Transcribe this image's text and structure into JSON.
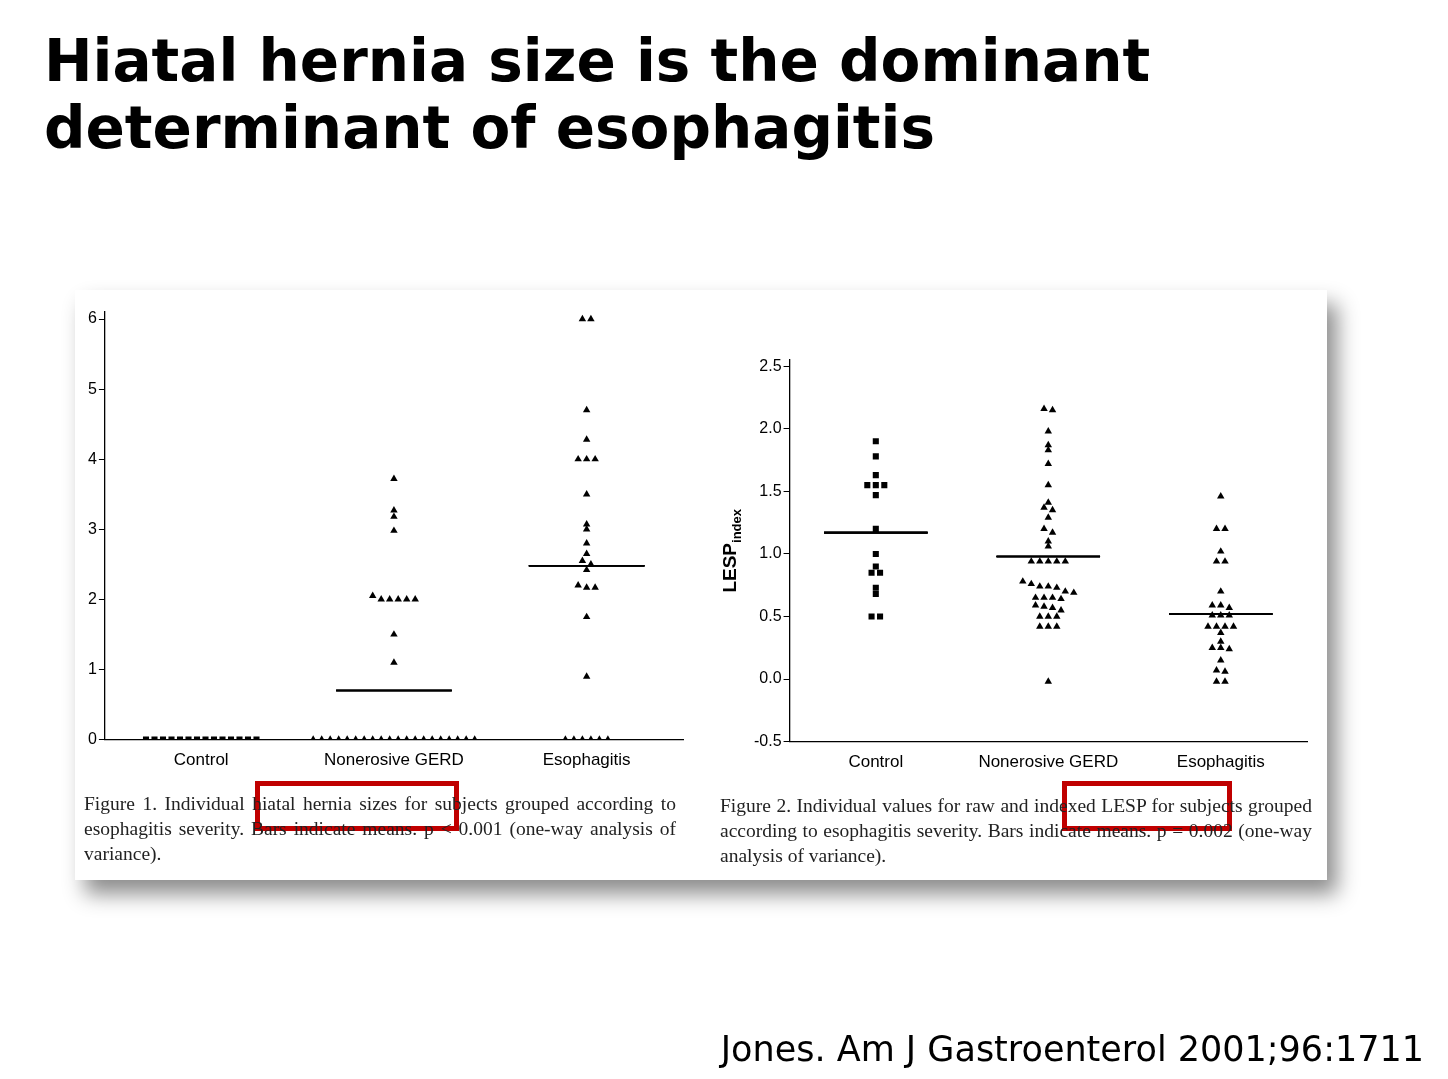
{
  "chart_data": [
    {
      "type": "scatter",
      "title": "Hiatal hernia size is the dominant determinant of esophagitis",
      "categories": [
        "Control",
        "Nonerosive GERD",
        "Esophagitis"
      ],
      "ylim": [
        0,
        6.1
      ],
      "yticks": [
        0,
        1,
        2,
        3,
        4,
        5,
        6
      ],
      "legend": false,
      "grid": false,
      "series": [
        {
          "marker": "square",
          "color": "#000000",
          "x": [
            "Control",
            "Control",
            "Control",
            "Control",
            "Control",
            "Control",
            "Control",
            "Control",
            "Control",
            "Control",
            "Control",
            "Control",
            "Control",
            "Control"
          ],
          "values": [
            0,
            0,
            0,
            0,
            0,
            0,
            0,
            0,
            0,
            0,
            0,
            0,
            0,
            0
          ]
        },
        {
          "marker": "triangle",
          "color": "#000000",
          "x": [
            "Nonerosive GERD",
            "Nonerosive GERD",
            "Nonerosive GERD",
            "Nonerosive GERD",
            "Nonerosive GERD",
            "Nonerosive GERD",
            "Nonerosive GERD",
            "Nonerosive GERD",
            "Nonerosive GERD",
            "Nonerosive GERD",
            "Nonerosive GERD",
            "Nonerosive GERD",
            "Nonerosive GERD",
            "Nonerosive GERD",
            "Nonerosive GERD",
            "Nonerosive GERD",
            "Nonerosive GERD",
            "Nonerosive GERD",
            "Nonerosive GERD",
            "Nonerosive GERD",
            "Nonerosive GERD",
            "Nonerosive GERD",
            "Nonerosive GERD",
            "Nonerosive GERD",
            "Nonerosive GERD",
            "Nonerosive GERD",
            "Nonerosive GERD",
            "Nonerosive GERD",
            "Nonerosive GERD",
            "Nonerosive GERD",
            "Nonerosive GERD",
            "Nonerosive GERD"
          ],
          "values": [
            3.72,
            3.27,
            3.18,
            2.98,
            2.05,
            2,
            2,
            2,
            2,
            2,
            1.5,
            1.1,
            0,
            0,
            0,
            0,
            0,
            0,
            0,
            0,
            0,
            0,
            0,
            0,
            0,
            0,
            0,
            0,
            0,
            0,
            0,
            0
          ]
        },
        {
          "marker": "triangle",
          "color": "#000000",
          "x": [
            "Esophagitis",
            "Esophagitis",
            "Esophagitis",
            "Esophagitis",
            "Esophagitis",
            "Esophagitis",
            "Esophagitis",
            "Esophagitis",
            "Esophagitis",
            "Esophagitis",
            "Esophagitis",
            "Esophagitis",
            "Esophagitis",
            "Esophagitis",
            "Esophagitis",
            "Esophagitis",
            "Esophagitis",
            "Esophagitis",
            "Esophagitis",
            "Esophagitis",
            "Esophagitis",
            "Esophagitis",
            "Esophagitis",
            "Esophagitis",
            "Esophagitis",
            "Esophagitis"
          ],
          "values": [
            6,
            6,
            4.7,
            4.28,
            4,
            4,
            4,
            3.5,
            3.07,
            3,
            2.8,
            2.65,
            2.55,
            2.5,
            2.42,
            2.2,
            2.17,
            2.17,
            1.75,
            0.9,
            0,
            0,
            0,
            0,
            0,
            0
          ]
        },
        {
          "type": "box",
          "color": "#000000",
          "boxes": [
            null,
            {
              "low": 0.7,
              "q1": 0.7,
              "median": 0.7,
              "q3": 0.7,
              "high": 0.7
            },
            {
              "low": 2.48,
              "q1": 2.48,
              "median": 2.48,
              "q3": 2.48,
              "high": 2.48
            }
          ]
        }
      ],
      "annotations": [
        "Figure 1. Individual hiatal hernia sizes for subjects grouped according to esophagitis severity. Bars indicate means. p < 0.001 (one-way analysis of variance)."
      ]
    },
    {
      "type": "scatter",
      "ylabel": "LESP$_{index}$",
      "categories": [
        "Control",
        "Nonerosive GERD",
        "Esophagitis"
      ],
      "ylim": [
        -0.5,
        2.55
      ],
      "yticks": [
        -0.5,
        {
          "value": 0,
          "label": "0.0"
        },
        0.5,
        {
          "value": 1,
          "label": "1.0"
        },
        1.5,
        {
          "value": 2,
          "label": "2.0"
        },
        2.5
      ],
      "legend": false,
      "grid": false,
      "series": [
        {
          "marker": "square",
          "color": "#000000",
          "x": [
            "Control",
            "Control",
            "Control",
            "Control",
            "Control",
            "Control",
            "Control",
            "Control",
            "Control",
            "Control",
            "Control",
            "Control",
            "Control",
            "Control",
            "Control",
            "Control"
          ],
          "values": [
            1.9,
            1.78,
            1.63,
            1.55,
            1.55,
            1.55,
            1.47,
            1.2,
            1,
            0.9,
            0.85,
            0.85,
            0.73,
            0.68,
            0.5,
            0.5
          ]
        },
        {
          "marker": "triangle",
          "color": "#000000",
          "x": [
            "Nonerosive GERD",
            "Nonerosive GERD",
            "Nonerosive GERD",
            "Nonerosive GERD",
            "Nonerosive GERD",
            "Nonerosive GERD",
            "Nonerosive GERD",
            "Nonerosive GERD",
            "Nonerosive GERD",
            "Nonerosive GERD",
            "Nonerosive GERD",
            "Nonerosive GERD",
            "Nonerosive GERD",
            "Nonerosive GERD",
            "Nonerosive GERD",
            "Nonerosive GERD",
            "Nonerosive GERD",
            "Nonerosive GERD",
            "Nonerosive GERD",
            "Nonerosive GERD",
            "Nonerosive GERD",
            "Nonerosive GERD",
            "Nonerosive GERD",
            "Nonerosive GERD",
            "Nonerosive GERD",
            "Nonerosive GERD",
            "Nonerosive GERD",
            "Nonerosive GERD",
            "Nonerosive GERD",
            "Nonerosive GERD",
            "Nonerosive GERD",
            "Nonerosive GERD",
            "Nonerosive GERD",
            "Nonerosive GERD",
            "Nonerosive GERD",
            "Nonerosive GERD",
            "Nonerosive GERD",
            "Nonerosive GERD",
            "Nonerosive GERD",
            "Nonerosive GERD",
            "Nonerosive GERD",
            "Nonerosive GERD"
          ],
          "values": [
            2.16,
            2.15,
            1.98,
            1.87,
            1.83,
            1.72,
            1.55,
            1.41,
            1.37,
            1.35,
            1.29,
            1.2,
            1.17,
            1.1,
            1.06,
            0.94,
            0.94,
            0.94,
            0.94,
            0.94,
            0.78,
            0.76,
            0.74,
            0.74,
            0.73,
            0.7,
            0.69,
            0.65,
            0.65,
            0.65,
            0.64,
            0.59,
            0.58,
            0.57,
            0.55,
            0.5,
            0.5,
            0.5,
            0.42,
            0.42,
            0.42,
            -0.02
          ]
        },
        {
          "marker": "triangle",
          "color": "#000000",
          "x": [
            "Esophagitis",
            "Esophagitis",
            "Esophagitis",
            "Esophagitis",
            "Esophagitis",
            "Esophagitis",
            "Esophagitis",
            "Esophagitis",
            "Esophagitis",
            "Esophagitis",
            "Esophagitis",
            "Esophagitis",
            "Esophagitis",
            "Esophagitis",
            "Esophagitis",
            "Esophagitis",
            "Esophagitis",
            "Esophagitis",
            "Esophagitis",
            "Esophagitis",
            "Esophagitis",
            "Esophagitis",
            "Esophagitis",
            "Esophagitis",
            "Esophagitis",
            "Esophagitis",
            "Esophagitis"
          ],
          "values": [
            1.46,
            1.2,
            1.2,
            1.02,
            0.94,
            0.94,
            0.7,
            0.59,
            0.57,
            0.59,
            0.51,
            0.51,
            0.51,
            0.42,
            0.42,
            0.42,
            0.42,
            0.37,
            0.3,
            0.25,
            0.24,
            0.25,
            0.15,
            0.07,
            0.06,
            -0.02,
            -0.02
          ]
        },
        {
          "type": "box",
          "color": "#000000",
          "boxes": [
            {
              "low": 1.17,
              "q1": 1.17,
              "median": 1.17,
              "q3": 1.17,
              "high": 1.17
            },
            {
              "low": 0.98,
              "q1": 0.98,
              "median": 0.98,
              "q3": 0.98,
              "high": 0.98
            },
            {
              "low": 0.52,
              "q1": 0.52,
              "median": 0.52,
              "q3": 0.52,
              "high": 0.52
            }
          ]
        }
      ],
      "annotations": [
        "Figure 2. Individual values for raw and indexed LESP for subjects grouped according to esophagitis severity. Bars indicate means. p = 0.002 (one-way analysis of variance).",
        "Jones. Am J Gastroenterol 2001;96:1711"
      ]
    }
  ]
}
